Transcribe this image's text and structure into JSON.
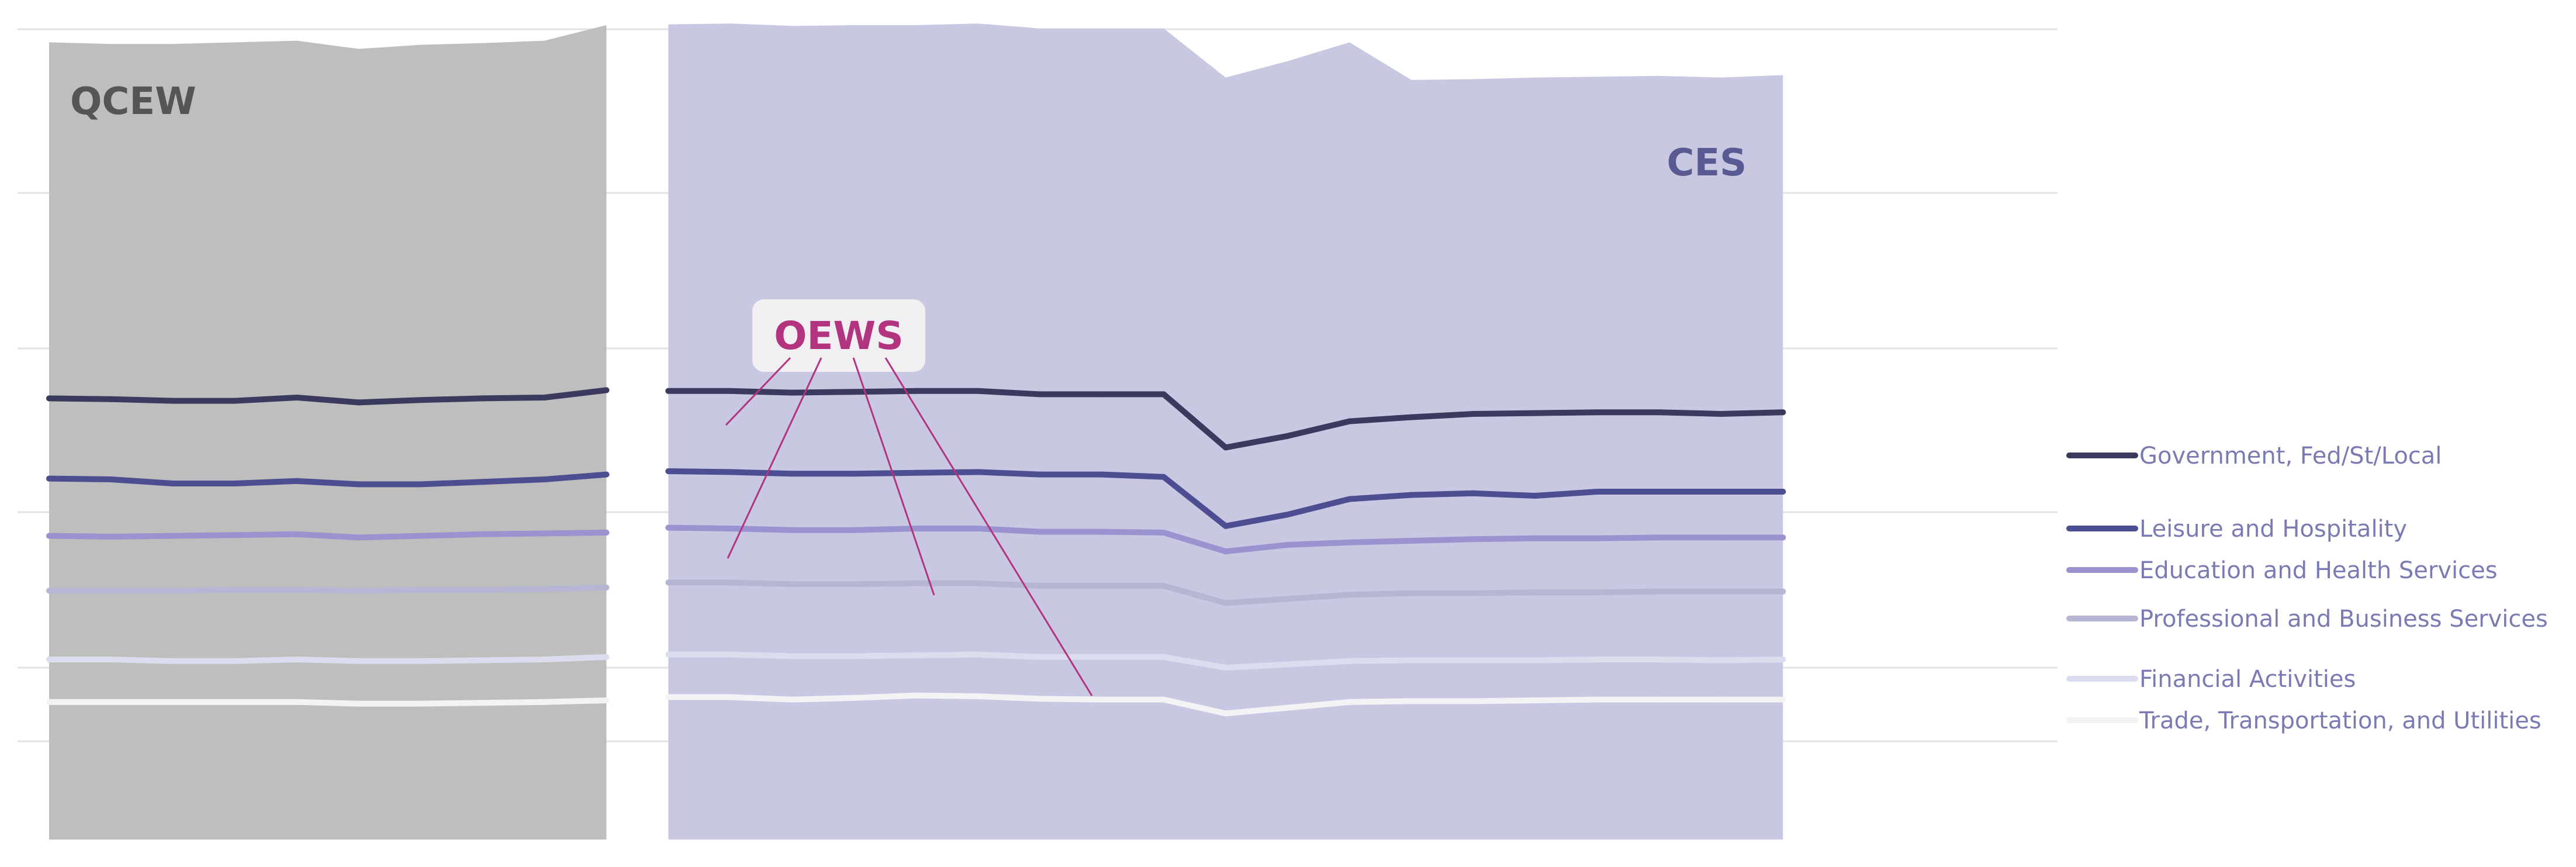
{
  "chart_data": {
    "type": "area",
    "ylim": [
      0,
      100
    ],
    "x": [
      1,
      2,
      3,
      4,
      5,
      6,
      7,
      8,
      9,
      10,
      11,
      12,
      13,
      14,
      15,
      16,
      17,
      18,
      19,
      20,
      21,
      22,
      23,
      24,
      25,
      26,
      27,
      28,
      29,
      30,
      31,
      32,
      33
    ],
    "gridlines": [
      12,
      21,
      40,
      60,
      79,
      99
    ],
    "panels": [
      {
        "name": "QCEW",
        "color": "#bebebe",
        "label_color": "#555555",
        "area": [
          97.4,
          97.2,
          97.2,
          97.4,
          97.6,
          96.6,
          97.1,
          97.3,
          97.6,
          99.5
        ],
        "series": [
          {
            "name": "Government, Fed/St/Local",
            "values": [
              53.9,
              53.8,
              53.6,
              53.6,
              54.0,
              53.4,
              53.7,
              53.9,
              54.0,
              54.9
            ]
          },
          {
            "name": "Leisure and Hospitality",
            "values": [
              44.1,
              44.0,
              43.5,
              43.5,
              43.8,
              43.4,
              43.4,
              43.7,
              44.0,
              44.6
            ]
          },
          {
            "name": "Education and Health Services",
            "values": [
              37.1,
              37.0,
              37.1,
              37.2,
              37.3,
              36.9,
              37.1,
              37.3,
              37.4,
              37.5
            ]
          },
          {
            "name": "Professional and Business Services",
            "values": [
              30.4,
              30.4,
              30.4,
              30.5,
              30.5,
              30.4,
              30.5,
              30.5,
              30.6,
              30.8
            ]
          },
          {
            "name": "Financial Activities",
            "values": [
              22.0,
              22.0,
              21.8,
              21.8,
              22.0,
              21.8,
              21.8,
              21.9,
              22.0,
              22.3
            ]
          },
          {
            "name": "Trade, Transportation, and Utilities",
            "values": [
              16.8,
              16.8,
              16.8,
              16.8,
              16.8,
              16.6,
              16.6,
              16.7,
              16.8,
              17.0
            ]
          }
        ]
      },
      {
        "name": "CES",
        "color": "#c8c8e3",
        "label_color": "#5a5a92",
        "area": [
          99.6,
          99.7,
          99.4,
          99.5,
          99.5,
          99.7,
          99.1,
          99.1,
          99.1,
          93.1,
          95.1,
          97.4,
          92.8,
          92.9,
          93.1,
          93.2,
          93.3,
          93.1,
          93.4
        ],
        "series": [
          {
            "name": "Government, Fed/St/Local",
            "values": [
              54.8,
              54.8,
              54.6,
              54.7,
              54.8,
              54.8,
              54.4,
              54.4,
              54.4,
              47.9,
              49.3,
              51.1,
              51.6,
              52.0,
              52.1,
              52.2,
              52.2,
              52.0,
              52.2
            ]
          },
          {
            "name": "Leisure and Hospitality",
            "values": [
              45.0,
              44.9,
              44.7,
              44.7,
              44.8,
              44.9,
              44.6,
              44.6,
              44.3,
              38.3,
              39.7,
              41.6,
              42.1,
              42.3,
              42.0,
              42.5,
              42.5,
              42.5,
              42.5
            ]
          },
          {
            "name": "Education and Health Services",
            "values": [
              38.1,
              38.0,
              37.8,
              37.8,
              38.0,
              38.0,
              37.6,
              37.6,
              37.5,
              35.2,
              36.0,
              36.3,
              36.5,
              36.7,
              36.8,
              36.8,
              36.9,
              36.9,
              36.9
            ]
          },
          {
            "name": "Professional and Business Services",
            "values": [
              31.4,
              31.4,
              31.2,
              31.2,
              31.3,
              31.3,
              31.0,
              31.0,
              31.0,
              28.9,
              29.4,
              29.9,
              30.1,
              30.1,
              30.2,
              30.2,
              30.3,
              30.3,
              30.3
            ]
          },
          {
            "name": "Financial Activities",
            "values": [
              22.6,
              22.6,
              22.4,
              22.4,
              22.5,
              22.6,
              22.3,
              22.3,
              22.3,
              21.0,
              21.4,
              21.8,
              21.9,
              21.9,
              21.9,
              22.0,
              22.0,
              21.9,
              22.0
            ]
          },
          {
            "name": "Trade, Transportation, and Utilities",
            "values": [
              17.4,
              17.4,
              17.1,
              17.3,
              17.6,
              17.5,
              17.2,
              17.1,
              17.1,
              15.4,
              16.1,
              16.8,
              16.9,
              16.9,
              17.0,
              17.1,
              17.1,
              17.1,
              17.1
            ]
          }
        ]
      }
    ],
    "series_colors": {
      "Government, Fed/St/Local": "#3a3a5e",
      "Leisure and Hospitality": "#4d4d91",
      "Education and Health Services": "#9b93cf",
      "Professional and Business Services": "#b6b5d4",
      "Financial Activities": "#dcdcef",
      "Trade, Transportation, and Utilities": "#f3f3f5"
    },
    "legend_color": "#7b7bb4",
    "legend": [
      "Government, Fed/St/Local",
      "Leisure and Hospitality",
      "Education and Health Services",
      "Professional and Business Services",
      "Financial Activities",
      "Trade, Transportation, and Utilities"
    ],
    "callout": {
      "text": "OEWS",
      "color": "#b2347f",
      "box_color": "#f1eff2"
    },
    "legend_placement": "right"
  }
}
